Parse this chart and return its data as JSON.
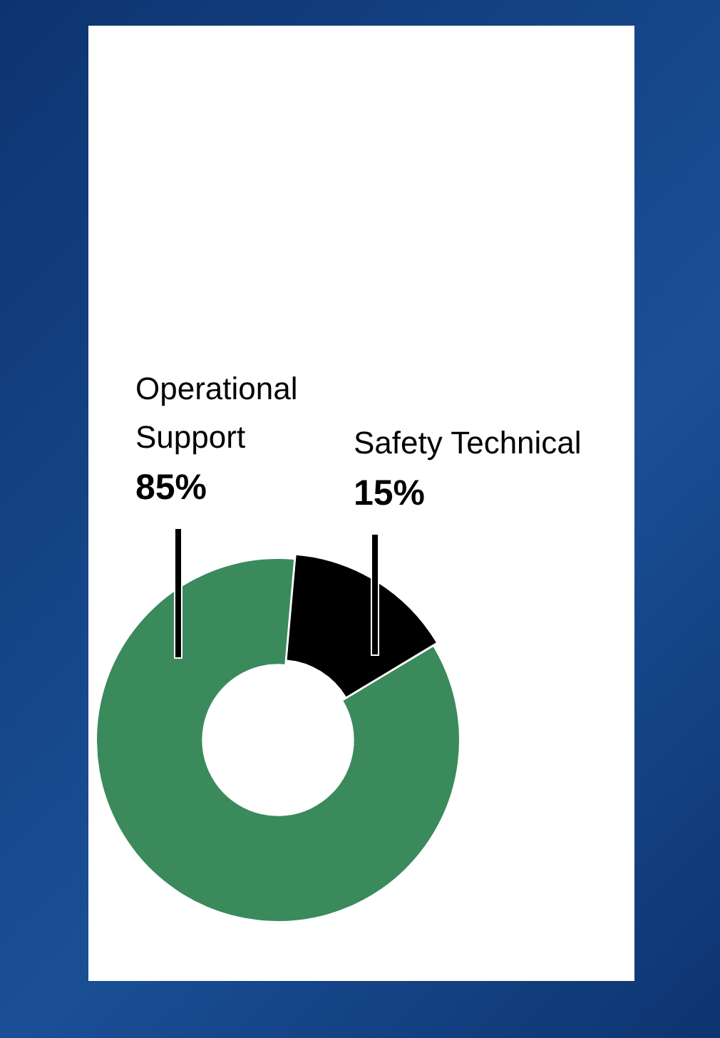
{
  "chart_data": {
    "type": "donut",
    "categories": [
      "Safety Technical",
      "Operational Support"
    ],
    "values": [
      15,
      85
    ],
    "colors": [
      "#000000",
      "#3a8a5c"
    ],
    "value_labels": [
      "15%",
      "85%"
    ],
    "legend": false
  }
}
